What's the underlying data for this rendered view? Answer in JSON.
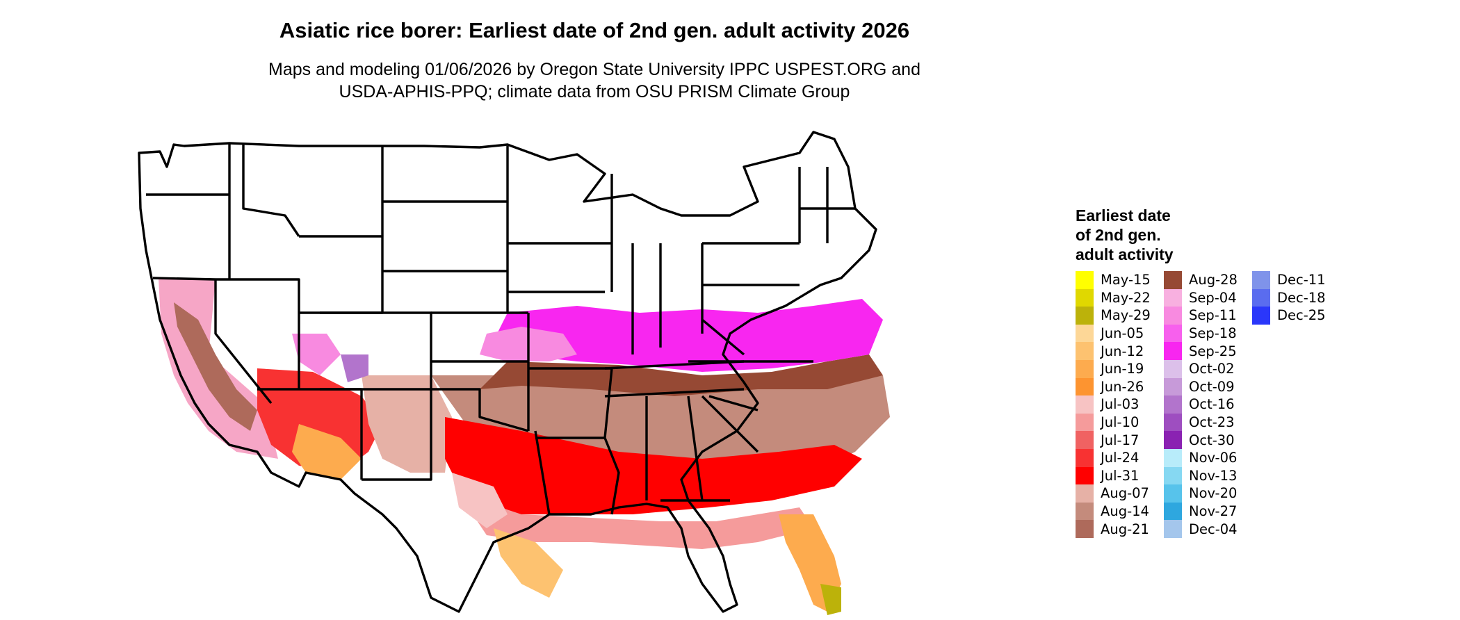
{
  "title": "Asiatic rice borer: Earliest date of 2nd gen. adult activity 2026",
  "subtitle_line1": "Maps and modeling 01/06/2026 by Oregon State University IPPC USPEST.ORG and",
  "subtitle_line2": "USDA-APHIS-PPQ; climate data from OSU PRISM Climate Group",
  "legend": {
    "title_line1": "Earliest date",
    "title_line2": "of 2nd gen.",
    "title_line3": "adult activity",
    "items": [
      {
        "label": "May-15",
        "color": "#ffff00"
      },
      {
        "label": "May-22",
        "color": "#e0d800"
      },
      {
        "label": "May-29",
        "color": "#bcb20a"
      },
      {
        "label": "Jun-05",
        "color": "#fdd797"
      },
      {
        "label": "Jun-12",
        "color": "#fdc270"
      },
      {
        "label": "Jun-19",
        "color": "#fdab4e"
      },
      {
        "label": "Jun-26",
        "color": "#fd9430"
      },
      {
        "label": "Jul-03",
        "color": "#f7c3c3"
      },
      {
        "label": "Jul-10",
        "color": "#f59b9b"
      },
      {
        "label": "Jul-17",
        "color": "#f06262"
      },
      {
        "label": "Jul-24",
        "color": "#f83232"
      },
      {
        "label": "Jul-31",
        "color": "#ff0000"
      },
      {
        "label": "Aug-07",
        "color": "#e6b1a6"
      },
      {
        "label": "Aug-14",
        "color": "#c48b7c"
      },
      {
        "label": "Aug-21",
        "color": "#ae6a5b"
      },
      {
        "label": "Aug-28",
        "color": "#964934"
      },
      {
        "label": "Sep-04",
        "color": "#f8b0e0"
      },
      {
        "label": "Sep-11",
        "color": "#f88ae0"
      },
      {
        "label": "Sep-18",
        "color": "#f760ed"
      },
      {
        "label": "Sep-25",
        "color": "#f826f0"
      },
      {
        "label": "Oct-02",
        "color": "#dcc0ea"
      },
      {
        "label": "Oct-09",
        "color": "#c79ad9"
      },
      {
        "label": "Oct-16",
        "color": "#b274cc"
      },
      {
        "label": "Oct-23",
        "color": "#9e4ec0"
      },
      {
        "label": "Oct-30",
        "color": "#8a22b2"
      },
      {
        "label": "Nov-06",
        "color": "#b8ecfa"
      },
      {
        "label": "Nov-13",
        "color": "#86d8f2"
      },
      {
        "label": "Nov-20",
        "color": "#57c3eb"
      },
      {
        "label": "Nov-27",
        "color": "#2ea7df"
      },
      {
        "label": "Dec-04",
        "color": "#a4c6ec"
      },
      {
        "label": "Dec-11",
        "color": "#7f93ea"
      },
      {
        "label": "Dec-18",
        "color": "#5a6cef"
      },
      {
        "label": "Dec-25",
        "color": "#2a37fa"
      }
    ]
  }
}
